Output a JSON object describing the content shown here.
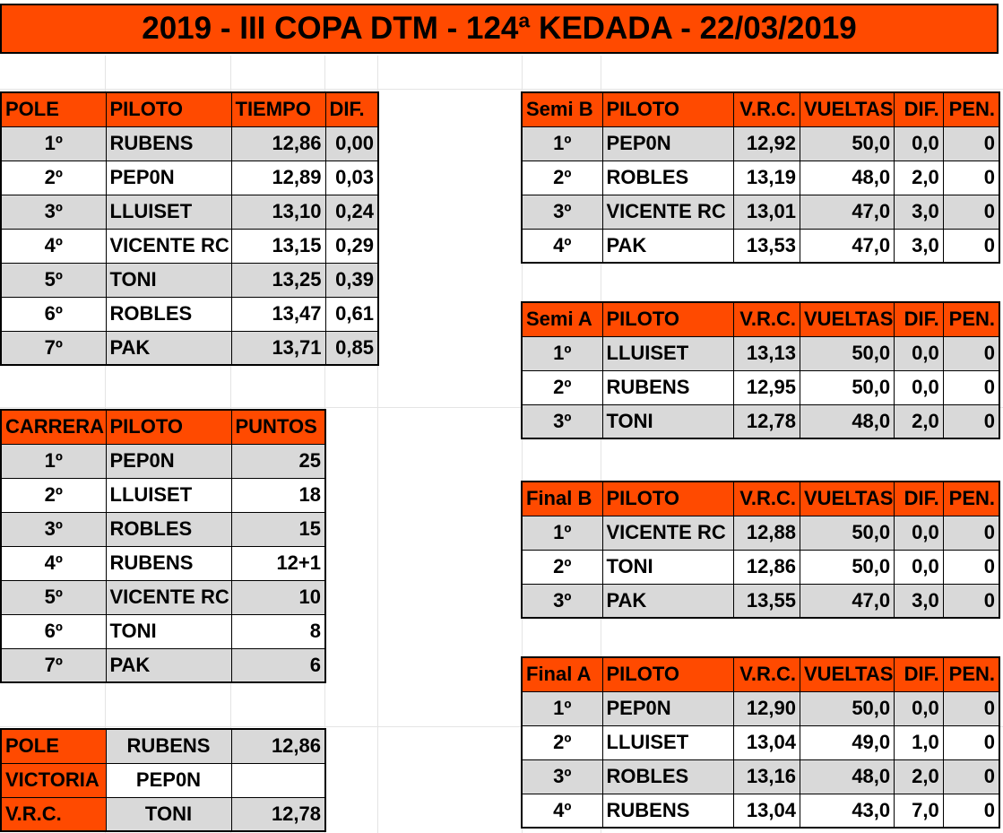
{
  "title": "2019 - III COPA DTM - 124ª KEDADA - 22/03/2019",
  "pole": {
    "headers": [
      "POLE",
      "PILOTO",
      "TIEMPO",
      "DIF."
    ],
    "rows": [
      {
        "pos": "1º",
        "piloto": "RUBENS",
        "tiempo": "12,86",
        "dif": "0,00"
      },
      {
        "pos": "2º",
        "piloto": "PEP0N",
        "tiempo": "12,89",
        "dif": "0,03"
      },
      {
        "pos": "3º",
        "piloto": "LLUISET",
        "tiempo": "13,10",
        "dif": "0,24"
      },
      {
        "pos": "4º",
        "piloto": "VICENTE RC",
        "tiempo": "13,15",
        "dif": "0,29"
      },
      {
        "pos": "5º",
        "piloto": "TONI",
        "tiempo": "13,25",
        "dif": "0,39"
      },
      {
        "pos": "6º",
        "piloto": "ROBLES",
        "tiempo": "13,47",
        "dif": "0,61"
      },
      {
        "pos": "7º",
        "piloto": "PAK",
        "tiempo": "13,71",
        "dif": "0,85"
      }
    ]
  },
  "carrera": {
    "headers": [
      "CARRERA",
      "PILOTO",
      "PUNTOS"
    ],
    "rows": [
      {
        "pos": "1º",
        "piloto": "PEP0N",
        "puntos": "25"
      },
      {
        "pos": "2º",
        "piloto": "LLUISET",
        "puntos": "18"
      },
      {
        "pos": "3º",
        "piloto": "ROBLES",
        "puntos": "15"
      },
      {
        "pos": "4º",
        "piloto": "RUBENS",
        "puntos": "12+1"
      },
      {
        "pos": "5º",
        "piloto": "VICENTE RC",
        "puntos": "10"
      },
      {
        "pos": "6º",
        "piloto": "TONI",
        "puntos": "8"
      },
      {
        "pos": "7º",
        "piloto": "PAK",
        "puntos": "6"
      }
    ]
  },
  "resumen": {
    "rows": [
      {
        "label": "POLE",
        "piloto": "RUBENS",
        "valor": "12,86"
      },
      {
        "label": "VICTORIA",
        "piloto": "PEP0N",
        "valor": ""
      },
      {
        "label": "V.R.C.",
        "piloto": "TONI",
        "valor": "12,78"
      }
    ]
  },
  "semi_b": {
    "headers": [
      "Semi B",
      "PILOTO",
      "V.R.C.",
      "VUELTAS",
      "DIF.",
      "PEN."
    ],
    "rows": [
      {
        "pos": "1º",
        "piloto": "PEP0N",
        "vrc": "12,92",
        "vueltas": "50,0",
        "dif": "0,0",
        "pen": "0"
      },
      {
        "pos": "2º",
        "piloto": "ROBLES",
        "vrc": "13,19",
        "vueltas": "48,0",
        "dif": "2,0",
        "pen": "0"
      },
      {
        "pos": "3º",
        "piloto": "VICENTE RC",
        "vrc": "13,01",
        "vueltas": "47,0",
        "dif": "3,0",
        "pen": "0"
      },
      {
        "pos": "4º",
        "piloto": "PAK",
        "vrc": "13,53",
        "vueltas": "47,0",
        "dif": "3,0",
        "pen": "0"
      }
    ]
  },
  "semi_a": {
    "headers": [
      "Semi A",
      "PILOTO",
      "V.R.C.",
      "VUELTAS",
      "DIF.",
      "PEN."
    ],
    "rows": [
      {
        "pos": "1º",
        "piloto": "LLUISET",
        "vrc": "13,13",
        "vueltas": "50,0",
        "dif": "0,0",
        "pen": "0"
      },
      {
        "pos": "2º",
        "piloto": "RUBENS",
        "vrc": "12,95",
        "vueltas": "50,0",
        "dif": "0,0",
        "pen": "0"
      },
      {
        "pos": "3º",
        "piloto": "TONI",
        "vrc": "12,78",
        "vueltas": "48,0",
        "dif": "2,0",
        "pen": "0"
      }
    ]
  },
  "final_b": {
    "headers": [
      "Final B",
      "PILOTO",
      "V.R.C.",
      "VUELTAS",
      "DIF.",
      "PEN."
    ],
    "rows": [
      {
        "pos": "1º",
        "piloto": "VICENTE RC",
        "vrc": "12,88",
        "vueltas": "50,0",
        "dif": "0,0",
        "pen": "0"
      },
      {
        "pos": "2º",
        "piloto": "TONI",
        "vrc": "12,86",
        "vueltas": "50,0",
        "dif": "0,0",
        "pen": "0"
      },
      {
        "pos": "3º",
        "piloto": "PAK",
        "vrc": "13,55",
        "vueltas": "47,0",
        "dif": "3,0",
        "pen": "0"
      }
    ]
  },
  "final_a": {
    "headers": [
      "Final A",
      "PILOTO",
      "V.R.C.",
      "VUELTAS",
      "DIF.",
      "PEN."
    ],
    "rows": [
      {
        "pos": "1º",
        "piloto": "PEP0N",
        "vrc": "12,90",
        "vueltas": "50,0",
        "dif": "0,0",
        "pen": "0"
      },
      {
        "pos": "2º",
        "piloto": "LLUISET",
        "vrc": "13,04",
        "vueltas": "49,0",
        "dif": "1,0",
        "pen": "0"
      },
      {
        "pos": "3º",
        "piloto": "ROBLES",
        "vrc": "13,16",
        "vueltas": "48,0",
        "dif": "2,0",
        "pen": "0"
      },
      {
        "pos": "4º",
        "piloto": "RUBENS",
        "vrc": "13,04",
        "vueltas": "43,0",
        "dif": "7,0",
        "pen": "0"
      }
    ]
  },
  "colors": {
    "header": "#ff4a00",
    "row_gray": "#d9d9d9"
  }
}
